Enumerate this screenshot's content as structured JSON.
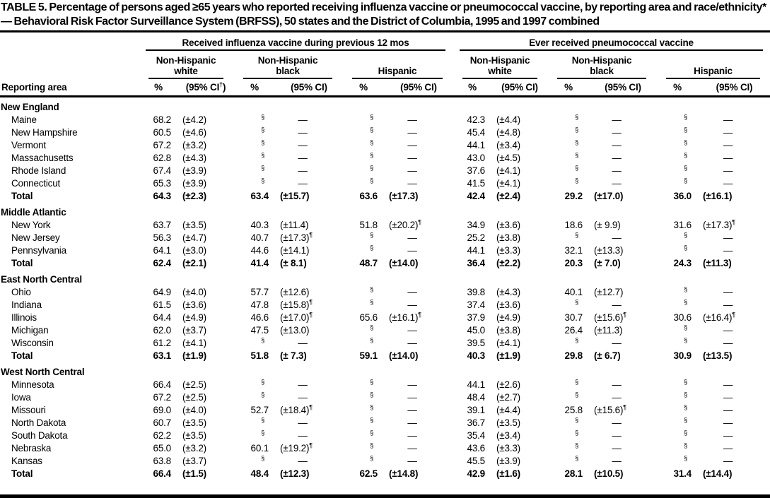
{
  "title": "TABLE 5. Percentage of persons aged ≥65 years who reported receiving influenza vaccine or pneumococcal vaccine, by reporting area and race/ethnicity* — Behavioral Risk Factor Surveillance System (BRFSS), 50 states and the District of Columbia, 1995 and 1997 combined",
  "table": {
    "row_label": "Reporting area",
    "groups": [
      {
        "title": "Received influenza vaccine during previous 12 mos",
        "columns": [
          {
            "sub": "Non-Hispanic\nwhite",
            "pct": "%",
            "ci": "(95% CI†)"
          },
          {
            "sub": "Non-Hispanic\nblack",
            "pct": "%",
            "ci": "(95% CI)"
          },
          {
            "sub": "Hispanic",
            "pct": "%",
            "ci": "(95% CI)"
          }
        ]
      },
      {
        "title": "Ever received pneumococcal vaccine",
        "columns": [
          {
            "sub": "Non-Hispanic\nwhite",
            "pct": "%",
            "ci": "(95% CI)"
          },
          {
            "sub": "Non-Hispanic\nblack",
            "pct": "%",
            "ci": "(95% CI)"
          },
          {
            "sub": "Hispanic",
            "pct": "%",
            "ci": "(95% CI)"
          }
        ]
      }
    ],
    "footnote_symbols": {
      "suppressed": "§",
      "wide_ci": "¶",
      "ci_note": "†",
      "missing": "—"
    },
    "sections": [
      {
        "name": "New England",
        "rows": [
          {
            "area": "Maine",
            "bold": false,
            "cells": [
              "68.2",
              "(±4.2)",
              "§",
              "—",
              "§",
              "—",
              "42.3",
              "(±4.4)",
              "§",
              "—",
              "§",
              "—"
            ]
          },
          {
            "area": "New Hampshire",
            "bold": false,
            "cells": [
              "60.5",
              "(±4.6)",
              "§",
              "—",
              "§",
              "—",
              "45.4",
              "(±4.8)",
              "§",
              "—",
              "§",
              "—"
            ]
          },
          {
            "area": "Vermont",
            "bold": false,
            "cells": [
              "67.2",
              "(±3.2)",
              "§",
              "—",
              "§",
              "—",
              "44.1",
              "(±3.4)",
              "§",
              "—",
              "§",
              "—"
            ]
          },
          {
            "area": "Massachusetts",
            "bold": false,
            "cells": [
              "62.8",
              "(±4.3)",
              "§",
              "—",
              "§",
              "—",
              "43.0",
              "(±4.5)",
              "§",
              "—",
              "§",
              "—"
            ]
          },
          {
            "area": "Rhode Island",
            "bold": false,
            "cells": [
              "67.4",
              "(±3.9)",
              "§",
              "—",
              "§",
              "—",
              "37.6",
              "(±4.1)",
              "§",
              "—",
              "§",
              "—"
            ]
          },
          {
            "area": "Connecticut",
            "bold": false,
            "cells": [
              "65.3",
              "(±3.9)",
              "§",
              "—",
              "§",
              "—",
              "41.5",
              "(±4.1)",
              "§",
              "—",
              "§",
              "—"
            ]
          },
          {
            "area": "Total",
            "bold": true,
            "cells": [
              "64.3",
              "(±2.3)",
              "63.4",
              "(±15.7)",
              "63.6",
              "(±17.3)",
              "42.4",
              "(±2.4)",
              "29.2",
              "(±17.0)",
              "36.0",
              "(±16.1)"
            ]
          }
        ]
      },
      {
        "name": "Middle Atlantic",
        "rows": [
          {
            "area": "New York",
            "bold": false,
            "cells": [
              "63.7",
              "(±3.5)",
              "40.3",
              "(±11.4)",
              "51.8",
              "(±20.2)¶",
              "34.9",
              "(±3.6)",
              "18.6",
              "(± 9.9)",
              "31.6",
              "(±17.3)¶"
            ]
          },
          {
            "area": "New Jersey",
            "bold": false,
            "cells": [
              "56.3",
              "(±4.7)",
              "40.7",
              "(±17.3)¶",
              "§",
              "—",
              "25.2",
              "(±3.8)",
              "§",
              "—",
              "§",
              "—"
            ]
          },
          {
            "area": "Pennsylvania",
            "bold": false,
            "cells": [
              "64.1",
              "(±3.0)",
              "44.6",
              "(±14.1)",
              "§",
              "—",
              "44.1",
              "(±3.3)",
              "32.1",
              "(±13.3)",
              "§",
              "—"
            ]
          },
          {
            "area": "Total",
            "bold": true,
            "cells": [
              "62.4",
              "(±2.1)",
              "41.4",
              "(± 8.1)",
              "48.7",
              "(±14.0)",
              "36.4",
              "(±2.2)",
              "20.3",
              "(± 7.0)",
              "24.3",
              "(±11.3)"
            ]
          }
        ]
      },
      {
        "name": "East North Central",
        "rows": [
          {
            "area": "Ohio",
            "bold": false,
            "cells": [
              "64.9",
              "(±4.0)",
              "57.7",
              "(±12.6)",
              "§",
              "—",
              "39.8",
              "(±4.3)",
              "40.1",
              "(±12.7)",
              "§",
              "—"
            ]
          },
          {
            "area": "Indiana",
            "bold": false,
            "cells": [
              "61.5",
              "(±3.6)",
              "47.8",
              "(±15.8)¶",
              "§",
              "—",
              "37.4",
              "(±3.6)",
              "§",
              "—",
              "§",
              "—"
            ]
          },
          {
            "area": "Illinois",
            "bold": false,
            "cells": [
              "64.4",
              "(±4.9)",
              "46.6",
              "(±17.0)¶",
              "65.6",
              "(±16.1)¶",
              "37.9",
              "(±4.9)",
              "30.7",
              "(±15.6)¶",
              "30.6",
              "(±16.4)¶"
            ]
          },
          {
            "area": "Michigan",
            "bold": false,
            "cells": [
              "62.0",
              "(±3.7)",
              "47.5",
              "(±13.0)",
              "§",
              "—",
              "45.0",
              "(±3.8)",
              "26.4",
              "(±11.3)",
              "§",
              "—"
            ]
          },
          {
            "area": "Wisconsin",
            "bold": false,
            "cells": [
              "61.2",
              "(±4.1)",
              "§",
              "—",
              "§",
              "—",
              "39.5",
              "(±4.1)",
              "§",
              "—",
              "§",
              "—"
            ]
          },
          {
            "area": "Total",
            "bold": true,
            "cells": [
              "63.1",
              "(±1.9)",
              "51.8",
              "(± 7.3)",
              "59.1",
              "(±14.0)",
              "40.3",
              "(±1.9)",
              "29.8",
              "(± 6.7)",
              "30.9",
              "(±13.5)"
            ]
          }
        ]
      },
      {
        "name": "West North Central",
        "rows": [
          {
            "area": "Minnesota",
            "bold": false,
            "cells": [
              "66.4",
              "(±2.5)",
              "§",
              "—",
              "§",
              "—",
              "44.1",
              "(±2.6)",
              "§",
              "—",
              "§",
              "—"
            ]
          },
          {
            "area": "Iowa",
            "bold": false,
            "cells": [
              "67.2",
              "(±2.5)",
              "§",
              "—",
              "§",
              "—",
              "48.4",
              "(±2.7)",
              "§",
              "—",
              "§",
              "—"
            ]
          },
          {
            "area": "Missouri",
            "bold": false,
            "cells": [
              "69.0",
              "(±4.0)",
              "52.7",
              "(±18.4)¶",
              "§",
              "—",
              "39.1",
              "(±4.4)",
              "25.8",
              "(±15.6)¶",
              "§",
              "—"
            ]
          },
          {
            "area": "North Dakota",
            "bold": false,
            "cells": [
              "60.7",
              "(±3.5)",
              "§",
              "—",
              "§",
              "—",
              "36.7",
              "(±3.5)",
              "§",
              "—",
              "§",
              "—"
            ]
          },
          {
            "area": "South Dakota",
            "bold": false,
            "cells": [
              "62.2",
              "(±3.5)",
              "§",
              "—",
              "§",
              "—",
              "35.4",
              "(±3.4)",
              "§",
              "—",
              "§",
              "—"
            ]
          },
          {
            "area": "Nebraska",
            "bold": false,
            "cells": [
              "65.0",
              "(±3.2)",
              "60.1",
              "(±19.2)¶",
              "§",
              "—",
              "43.6",
              "(±3.3)",
              "§",
              "—",
              "§",
              "—"
            ]
          },
          {
            "area": "Kansas",
            "bold": false,
            "cells": [
              "63.8",
              "(±3.7)",
              "§",
              "—",
              "§",
              "—",
              "45.5",
              "(±3.9)",
              "§",
              "—",
              "§",
              "—"
            ]
          },
          {
            "area": "Total",
            "bold": true,
            "cells": [
              "66.4",
              "(±1.5)",
              "48.4",
              "(±12.3)",
              "62.5",
              "(±14.8)",
              "42.9",
              "(±1.6)",
              "28.1",
              "(±10.5)",
              "31.4",
              "(±14.4)"
            ]
          }
        ]
      }
    ]
  }
}
